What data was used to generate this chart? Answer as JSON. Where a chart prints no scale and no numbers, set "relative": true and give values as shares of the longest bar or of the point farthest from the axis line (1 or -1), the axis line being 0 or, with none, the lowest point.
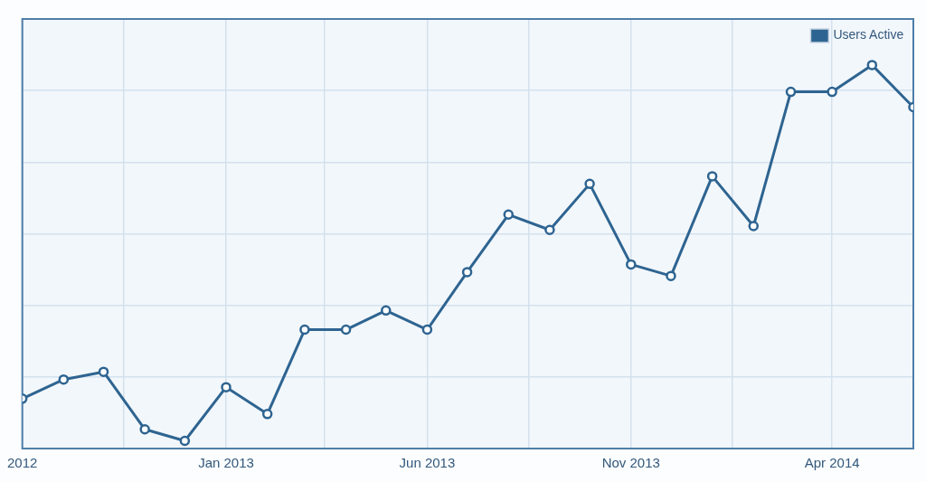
{
  "chart_data": {
    "type": "line",
    "x": [
      "2012-08",
      "2012-09",
      "2012-10",
      "2012-11",
      "2012-12",
      "2013-01",
      "2013-02",
      "2013-03",
      "2013-04",
      "2013-05",
      "2013-06",
      "2013-07",
      "2013-08",
      "2013-09",
      "2013-10",
      "2013-11",
      "2013-12",
      "2014-01",
      "2014-02",
      "2014-03",
      "2014-04",
      "2014-05",
      "2014-06"
    ],
    "series": [
      {
        "name": "Users Active",
        "color": "#2e6491",
        "values": [
          0.13,
          0.18,
          0.2,
          0.05,
          0.02,
          0.16,
          0.09,
          0.31,
          0.31,
          0.36,
          0.31,
          0.46,
          0.61,
          0.57,
          0.69,
          0.48,
          0.45,
          0.71,
          0.58,
          0.93,
          0.93,
          1,
          0.89
        ]
      }
    ],
    "relative": true,
    "xlim": [
      "2012-08",
      "2014-06"
    ],
    "xticks": [
      {
        "value": "2012-08",
        "label": "2012"
      },
      {
        "value": "2012-10-16",
        "label": null
      },
      {
        "value": "2013-01",
        "label": "Jan 2013"
      },
      {
        "value": "2013-03-16",
        "label": null
      },
      {
        "value": "2013-06",
        "label": "Jun 2013"
      },
      {
        "value": "2013-08-16",
        "label": null
      },
      {
        "value": "2013-11",
        "label": "Nov 2013"
      },
      {
        "value": "2014-01-16",
        "label": null
      },
      {
        "value": "2014-04",
        "label": "Apr 2014"
      }
    ],
    "grid": true,
    "legend": "top right",
    "marker": "circle",
    "line_style": "solid"
  }
}
